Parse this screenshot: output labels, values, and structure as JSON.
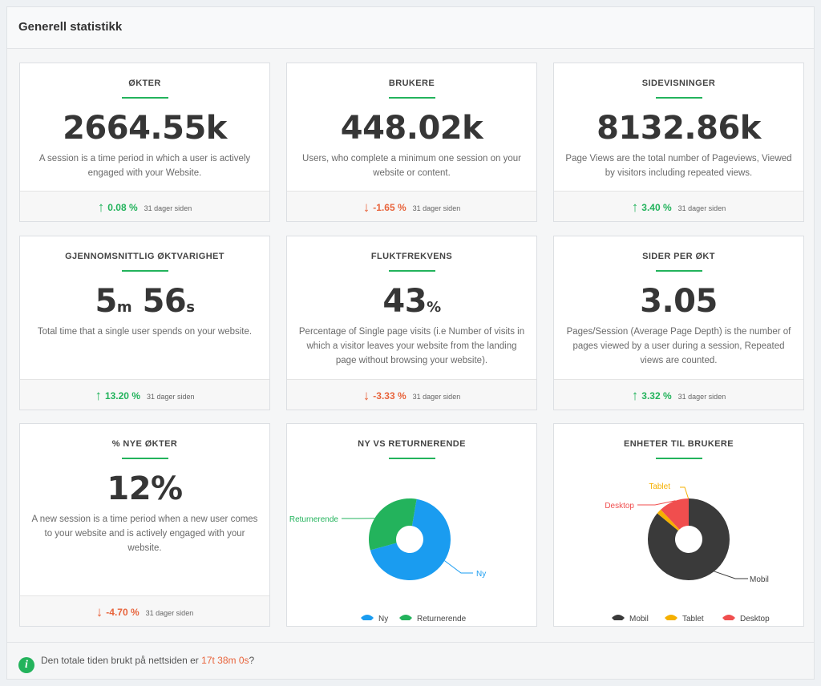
{
  "panel_title": "Generell statistikk",
  "cards": [
    {
      "title": "ØKTER",
      "value": "2664.55k",
      "description": "A session is a time period in which a user is actively engaged with your Website.",
      "change": "0.08 %",
      "direction": "up",
      "ago": "31 dager siden"
    },
    {
      "title": "BRUKERE",
      "value": "448.02k",
      "description": "Users, who complete a minimum one session on your website or content.",
      "change": "-1.65 %",
      "direction": "down",
      "ago": "31 dager siden"
    },
    {
      "title": "SIDEVISNINGER",
      "value": "8132.86k",
      "description": "Page Views are the total number of Pageviews, Viewed by visitors including repeated views.",
      "change": "3.40 %",
      "direction": "up",
      "ago": "31 dager siden"
    },
    {
      "title": "GJENNOMSNITTLIG ØKTVARIGHET",
      "value_min": "5",
      "unit_min": "m",
      "value_sec": "56",
      "unit_sec": "s",
      "description": "Total time that a single user spends on your website.",
      "change": "13.20 %",
      "direction": "up",
      "ago": "31 dager siden"
    },
    {
      "title": "FLUKTFREKVENS",
      "value": "43",
      "unit": "%",
      "description": "Percentage of Single page visits (i.e Number of visits in which a visitor leaves your website from the landing page without browsing your website).",
      "change": "-3.33 %",
      "direction": "down",
      "ago": "31 dager siden"
    },
    {
      "title": "SIDER PER ØKT",
      "value": "3.05",
      "description": "Pages/Session (Average Page Depth) is the number of pages viewed by a user during a session, Repeated views are counted.",
      "change": "3.32 %",
      "direction": "up",
      "ago": "31 dager siden"
    },
    {
      "title": "% NYE ØKTER",
      "value": "12%",
      "description": "A new session is a time period when a new user comes to your website and is actively engaged with your website.",
      "change": "-4.70 %",
      "direction": "down",
      "ago": "31 dager siden"
    }
  ],
  "colors": {
    "up": "#23b35c",
    "down": "#e8643c",
    "accent": "#23b35c"
  },
  "chart_data": [
    {
      "type": "pie",
      "title": "NY VS RETURNERENDE",
      "categories": [
        "Ny",
        "Returnerende"
      ],
      "values": [
        68,
        32
      ],
      "colors": [
        "#1a9cf0",
        "#23b35c"
      ],
      "legend": "bottom"
    },
    {
      "type": "pie",
      "title": "ENHETER TIL BRUKERE",
      "categories": [
        "Mobil",
        "Tablet",
        "Desktop"
      ],
      "values": [
        86,
        2,
        12
      ],
      "colors": [
        "#3a3a3a",
        "#f5b000",
        "#f04e4e"
      ],
      "legend": "bottom"
    }
  ],
  "footer": {
    "text": "Den totale tiden brukt på nettsiden er ",
    "time": "17t 38m 0s",
    "suffix": "?"
  }
}
